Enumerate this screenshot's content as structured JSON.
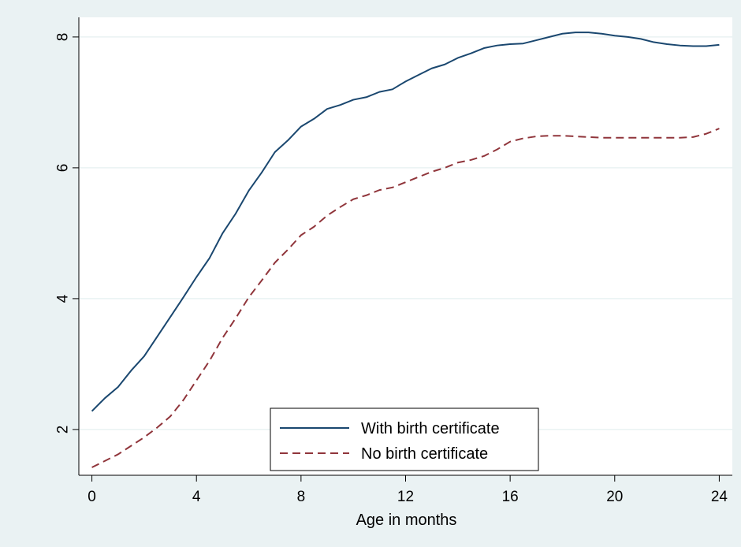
{
  "chart_data": {
    "type": "line",
    "title": "",
    "xlabel": "Age in months",
    "ylabel": "",
    "xlim": [
      -0.5,
      24.5
    ],
    "ylim": [
      1.3,
      8.3
    ],
    "xticks": [
      0,
      4,
      8,
      12,
      16,
      20,
      24
    ],
    "yticks": [
      2,
      4,
      6,
      8
    ],
    "grid": "horizontal",
    "legend_position": "bottom-center",
    "series": [
      {
        "name": "With birth certificate",
        "color": "#1a476f",
        "style": "solid",
        "points": [
          [
            0,
            2.28
          ],
          [
            0.5,
            2.48
          ],
          [
            1,
            2.65
          ],
          [
            1.5,
            2.9
          ],
          [
            2,
            3.12
          ],
          [
            2.5,
            3.42
          ],
          [
            3,
            3.72
          ],
          [
            3.5,
            4.02
          ],
          [
            4,
            4.33
          ],
          [
            4.5,
            4.62
          ],
          [
            5,
            5.0
          ],
          [
            5.5,
            5.3
          ],
          [
            6,
            5.65
          ],
          [
            6.5,
            5.93
          ],
          [
            7,
            6.24
          ],
          [
            7.5,
            6.42
          ],
          [
            8,
            6.63
          ],
          [
            8.5,
            6.75
          ],
          [
            9,
            6.9
          ],
          [
            9.5,
            6.96
          ],
          [
            10,
            7.04
          ],
          [
            10.5,
            7.08
          ],
          [
            11,
            7.16
          ],
          [
            11.5,
            7.2
          ],
          [
            12,
            7.32
          ],
          [
            12.5,
            7.42
          ],
          [
            13,
            7.52
          ],
          [
            13.5,
            7.58
          ],
          [
            14,
            7.68
          ],
          [
            14.5,
            7.75
          ],
          [
            15,
            7.83
          ],
          [
            15.5,
            7.87
          ],
          [
            16,
            7.89
          ],
          [
            16.5,
            7.9
          ],
          [
            17,
            7.95
          ],
          [
            17.5,
            8.0
          ],
          [
            18,
            8.05
          ],
          [
            18.5,
            8.07
          ],
          [
            19,
            8.07
          ],
          [
            19.5,
            8.05
          ],
          [
            20,
            8.02
          ],
          [
            20.5,
            8.0
          ],
          [
            21,
            7.97
          ],
          [
            21.5,
            7.92
          ],
          [
            22,
            7.89
          ],
          [
            22.5,
            7.87
          ],
          [
            23,
            7.86
          ],
          [
            23.5,
            7.86
          ],
          [
            24,
            7.88
          ]
        ]
      },
      {
        "name": "No birth certificate",
        "color": "#90353b",
        "style": "dashed",
        "points": [
          [
            0,
            1.42
          ],
          [
            0.5,
            1.52
          ],
          [
            1,
            1.62
          ],
          [
            1.5,
            1.75
          ],
          [
            2,
            1.88
          ],
          [
            2.5,
            2.03
          ],
          [
            3,
            2.2
          ],
          [
            3.5,
            2.45
          ],
          [
            4,
            2.75
          ],
          [
            4.5,
            3.05
          ],
          [
            5,
            3.4
          ],
          [
            5.5,
            3.7
          ],
          [
            6,
            4.02
          ],
          [
            6.5,
            4.28
          ],
          [
            7,
            4.55
          ],
          [
            7.5,
            4.75
          ],
          [
            8,
            4.97
          ],
          [
            8.5,
            5.1
          ],
          [
            9,
            5.27
          ],
          [
            9.5,
            5.4
          ],
          [
            10,
            5.52
          ],
          [
            10.5,
            5.58
          ],
          [
            11,
            5.66
          ],
          [
            11.5,
            5.7
          ],
          [
            12,
            5.78
          ],
          [
            12.5,
            5.86
          ],
          [
            13,
            5.94
          ],
          [
            13.5,
            6.0
          ],
          [
            14,
            6.08
          ],
          [
            14.5,
            6.12
          ],
          [
            15,
            6.18
          ],
          [
            15.5,
            6.28
          ],
          [
            16,
            6.4
          ],
          [
            16.5,
            6.45
          ],
          [
            17,
            6.48
          ],
          [
            17.5,
            6.49
          ],
          [
            18,
            6.49
          ],
          [
            18.5,
            6.48
          ],
          [
            19,
            6.47
          ],
          [
            19.5,
            6.46
          ],
          [
            20,
            6.46
          ],
          [
            20.5,
            6.46
          ],
          [
            21,
            6.46
          ],
          [
            21.5,
            6.46
          ],
          [
            22,
            6.46
          ],
          [
            22.5,
            6.46
          ],
          [
            23,
            6.47
          ],
          [
            23.5,
            6.52
          ],
          [
            24,
            6.6
          ]
        ]
      }
    ]
  }
}
